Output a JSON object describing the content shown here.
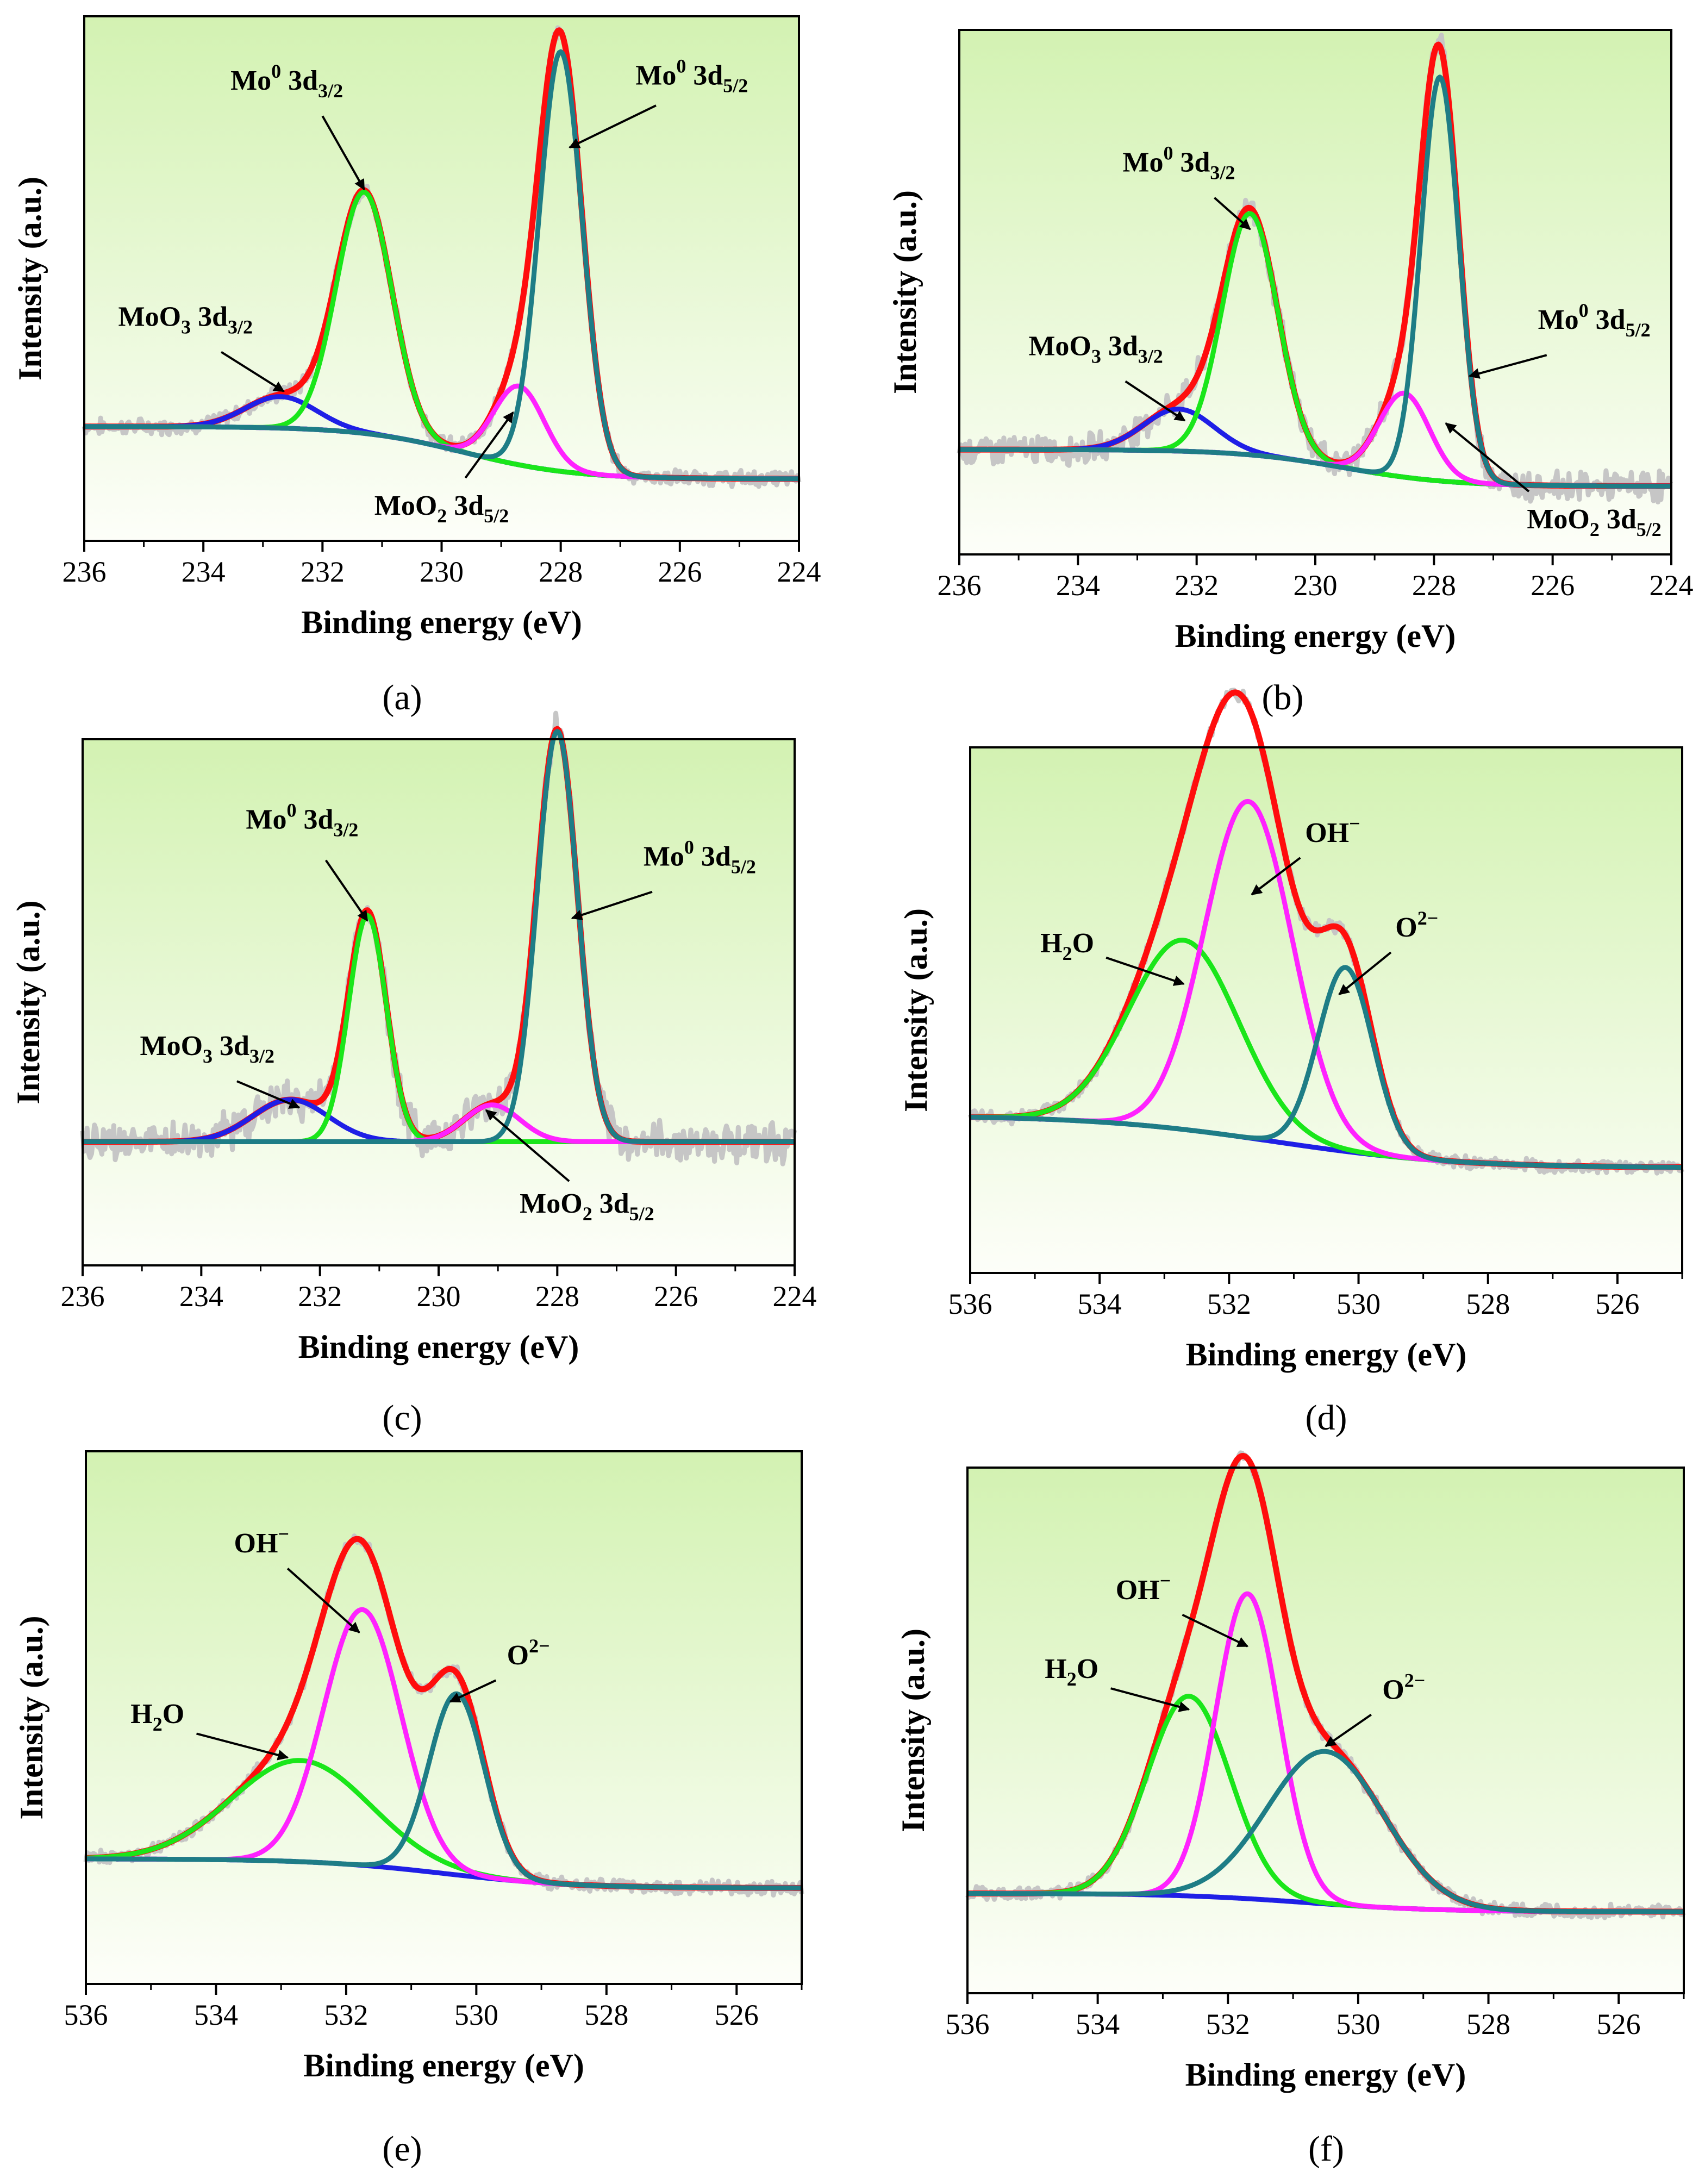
{
  "colors": {
    "background_top": "#d3f2b2",
    "background_bottom": "#fdfef9",
    "raw": "#c6c6c6",
    "envelope": "#ff0d0d",
    "background_line": "#1f1fe6",
    "green": "#1ae61a",
    "magenta": "#ff22ff",
    "teal": "#1e7d86",
    "arrow": "#000000"
  },
  "chart_data": [
    {
      "type": "line",
      "panel": "(a)",
      "xlabel": "Binding energy (eV)",
      "ylabel": "Intensity (a.u.)",
      "xlim": [
        236,
        224
      ],
      "ylim": [
        0,
        1
      ],
      "xticks": [
        236,
        234,
        232,
        230,
        228,
        226,
        224
      ],
      "xtick_labels": [
        "236",
        "234",
        "232",
        "230",
        "228",
        "226",
        "224"
      ],
      "background": {
        "high": 0.218,
        "low": 0.118,
        "center": 229.6,
        "width": 0.9
      },
      "series": [
        {
          "name": "MoO3 3d3/2",
          "color_key": "background_line",
          "center": 232.7,
          "height": 0.06,
          "fwhm": 1.4
        },
        {
          "name": "Mo0 3d3/2",
          "color_key": "green",
          "center": 231.3,
          "height": 0.46,
          "fwhm": 1.1
        },
        {
          "name": "MoO2 3d5/2",
          "color_key": "magenta",
          "center": 228.7,
          "height": 0.15,
          "fwhm": 1.0
        },
        {
          "name": "Mo0 3d5/2",
          "color_key": "teal",
          "center": 228.0,
          "height": 0.8,
          "fwhm": 0.85
        }
      ],
      "noise": 0.012,
      "annotations": [
        {
          "base": "Mo",
          "sup": "0",
          "rest": " 3d",
          "sub": "3/2",
          "x": 232.6,
          "y": 0.86,
          "anchor": "middle",
          "arrow_from": [
            232.0,
            0.81
          ],
          "arrow_to": [
            231.3,
            0.67
          ]
        },
        {
          "base": "Mo",
          "sup": "0",
          "rest": " 3d",
          "sub": "5/2",
          "x": 225.8,
          "y": 0.87,
          "anchor": "middle",
          "arrow_from": [
            226.4,
            0.83
          ],
          "arrow_to": [
            227.85,
            0.75
          ]
        },
        {
          "base": "MoO",
          "sub1": "3",
          "rest": " 3d",
          "sub": "3/2",
          "x": 234.3,
          "y": 0.41,
          "anchor": "middle",
          "arrow_from": [
            233.7,
            0.36
          ],
          "arrow_to": [
            232.65,
            0.285
          ]
        },
        {
          "base": "MoO",
          "sub1": "2",
          "rest": " 3d",
          "sub": "5/2",
          "x": 230.0,
          "y": 0.05,
          "anchor": "middle",
          "arrow_from": [
            229.6,
            0.12
          ],
          "arrow_to": [
            228.8,
            0.245
          ]
        }
      ]
    },
    {
      "type": "line",
      "panel": "(b)",
      "xlabel": "Binding energy (eV)",
      "ylabel": "Intensity (a.u.)",
      "xlim": [
        236,
        224
      ],
      "ylim": [
        0,
        1
      ],
      "xticks": [
        236,
        234,
        232,
        230,
        228,
        226,
        224
      ],
      "xtick_labels": [
        "236",
        "234",
        "232",
        "230",
        "228",
        "226",
        "224"
      ],
      "background": {
        "high": 0.2,
        "low": 0.13,
        "center": 229.5,
        "width": 0.9
      },
      "series": [
        {
          "name": "MoO3 3d3/2",
          "color_key": "background_line",
          "center": 232.3,
          "height": 0.08,
          "fwhm": 1.4
        },
        {
          "name": "Mo0 3d3/2",
          "color_key": "green",
          "center": 231.1,
          "height": 0.46,
          "fwhm": 1.1
        },
        {
          "name": "MoO2 3d5/2",
          "color_key": "magenta",
          "center": 228.5,
          "height": 0.16,
          "fwhm": 1.0
        },
        {
          "name": "Mo0 3d5/2",
          "color_key": "teal",
          "center": 227.9,
          "height": 0.77,
          "fwhm": 0.75
        }
      ],
      "noise": 0.022,
      "annotations": [
        {
          "base": "Mo",
          "sup": "0",
          "rest": " 3d",
          "sub": "3/2",
          "x": 232.3,
          "y": 0.73,
          "anchor": "middle",
          "arrow_from": [
            231.7,
            0.68
          ],
          "arrow_to": [
            231.1,
            0.62
          ]
        },
        {
          "base": "Mo",
          "sup": "0",
          "rest": " 3d",
          "sub": "5/2",
          "x": 225.3,
          "y": 0.43,
          "anchor": "middle",
          "arrow_from": [
            226.1,
            0.38
          ],
          "arrow_to": [
            227.4,
            0.34
          ]
        },
        {
          "base": "MoO",
          "sub1": "3",
          "rest": " 3d",
          "sub": "3/2",
          "x": 233.7,
          "y": 0.38,
          "anchor": "middle",
          "arrow_from": [
            233.2,
            0.33
          ],
          "arrow_to": [
            232.2,
            0.255
          ]
        },
        {
          "base": "MoO",
          "sub1": "2",
          "rest": " 3d",
          "sub": "5/2",
          "x": 225.3,
          "y": 0.05,
          "anchor": "middle",
          "arrow_from": [
            226.4,
            0.12
          ],
          "arrow_to": [
            227.8,
            0.25
          ]
        }
      ]
    },
    {
      "type": "line",
      "panel": "(c)",
      "xlabel": "Binding energy (eV)",
      "ylabel": "Intensity (a.u.)",
      "xlim": [
        236,
        224
      ],
      "ylim": [
        0,
        1
      ],
      "xticks": [
        236,
        234,
        232,
        230,
        228,
        226,
        224
      ],
      "xtick_labels": [
        "236",
        "234",
        "232",
        "230",
        "228",
        "226",
        "224"
      ],
      "background": {
        "high": 0.235,
        "low": 0.235,
        "center": 230.0,
        "width": 1.0
      },
      "series": [
        {
          "name": "MoO3 3d3/2",
          "color_key": "background_line",
          "center": 232.5,
          "height": 0.08,
          "fwhm": 1.5
        },
        {
          "name": "Mo0 3d3/2",
          "color_key": "green",
          "center": 231.2,
          "height": 0.43,
          "fwhm": 0.75
        },
        {
          "name": "MoO2 3d5/2",
          "color_key": "magenta",
          "center": 229.1,
          "height": 0.07,
          "fwhm": 1.1
        },
        {
          "name": "Mo0 3d5/2",
          "color_key": "teal",
          "center": 228.0,
          "height": 0.78,
          "fwhm": 0.8
        }
      ],
      "noise": 0.03,
      "annotations": [
        {
          "base": "Mo",
          "sup": "0",
          "rest": " 3d",
          "sub": "3/2",
          "x": 232.3,
          "y": 0.83,
          "anchor": "middle",
          "arrow_from": [
            231.9,
            0.77
          ],
          "arrow_to": [
            231.2,
            0.655
          ]
        },
        {
          "base": "Mo",
          "sup": "0",
          "rest": " 3d",
          "sub": "5/2",
          "x": 225.6,
          "y": 0.76,
          "anchor": "middle",
          "arrow_from": [
            226.4,
            0.71
          ],
          "arrow_to": [
            227.75,
            0.66
          ]
        },
        {
          "base": "MoO",
          "sub1": "3",
          "rest": " 3d",
          "sub": "3/2",
          "x": 233.9,
          "y": 0.4,
          "anchor": "middle",
          "arrow_from": [
            233.4,
            0.35
          ],
          "arrow_to": [
            232.35,
            0.3
          ]
        },
        {
          "base": "MoO",
          "sub1": "2",
          "rest": " 3d",
          "sub": "5/2",
          "x": 227.5,
          "y": 0.1,
          "anchor": "middle",
          "arrow_from": [
            227.8,
            0.16
          ],
          "arrow_to": [
            229.2,
            0.295
          ]
        }
      ]
    },
    {
      "type": "line",
      "panel": "(d)",
      "xlabel": "Binding energy (eV)",
      "ylabel": "Intensity (a.u.)",
      "xlim": [
        536,
        525
      ],
      "ylim": [
        0,
        1
      ],
      "xticks": [
        536,
        534,
        532,
        530,
        528,
        526
      ],
      "xtick_labels": [
        "536",
        "534",
        "532",
        "530",
        "528",
        "526"
      ],
      "background": {
        "high": 0.3,
        "low": 0.2,
        "center": 531.3,
        "width": 1.4
      },
      "series": [
        {
          "name": "H2O",
          "color_key": "green",
          "center": 532.7,
          "height": 0.36,
          "fwhm": 2.0
        },
        {
          "name": "OH-",
          "color_key": "magenta",
          "center": 531.7,
          "height": 0.64,
          "fwhm": 1.6
        },
        {
          "name": "O2-",
          "color_key": "teal",
          "center": 530.2,
          "height": 0.35,
          "fwhm": 1.0
        }
      ],
      "noise": 0.01,
      "annotations": [
        {
          "base": "OH",
          "sup": "−",
          "x": 530.4,
          "y": 0.82,
          "anchor": "middle",
          "arrow_from": [
            530.9,
            0.79
          ],
          "arrow_to": [
            531.65,
            0.72
          ]
        },
        {
          "base": "H",
          "sub1": "2",
          "rest": "O",
          "x": 534.5,
          "y": 0.61,
          "anchor": "middle",
          "arrow_from": [
            533.9,
            0.6
          ],
          "arrow_to": [
            532.7,
            0.55
          ]
        },
        {
          "base": "O",
          "sup": "2−",
          "x": 529.1,
          "y": 0.64,
          "anchor": "middle",
          "arrow_from": [
            529.5,
            0.61
          ],
          "arrow_to": [
            530.3,
            0.53
          ]
        }
      ]
    },
    {
      "type": "line",
      "panel": "(e)",
      "xlabel": "Binding energy (eV)",
      "ylabel": "Intensity (a.u.)",
      "xlim": [
        536,
        525
      ],
      "ylim": [
        0,
        1
      ],
      "xticks": [
        536,
        534,
        532,
        530,
        528,
        526
      ],
      "xtick_labels": [
        "536",
        "534",
        "532",
        "530",
        "528",
        "526"
      ],
      "background": {
        "high": 0.235,
        "low": 0.18,
        "center": 530.5,
        "width": 1.0
      },
      "series": [
        {
          "name": "H2O",
          "color_key": "green",
          "center": 532.7,
          "height": 0.19,
          "fwhm": 2.5
        },
        {
          "name": "OH-",
          "color_key": "magenta",
          "center": 531.75,
          "height": 0.48,
          "fwhm": 1.4
        },
        {
          "name": "O2-",
          "color_key": "teal",
          "center": 530.3,
          "height": 0.34,
          "fwhm": 1.0
        }
      ],
      "noise": 0.01,
      "annotations": [
        {
          "base": "OH",
          "sup": "−",
          "x": 533.3,
          "y": 0.81,
          "anchor": "middle",
          "arrow_from": [
            532.9,
            0.78
          ],
          "arrow_to": [
            531.8,
            0.66
          ]
        },
        {
          "base": "H",
          "sub1": "2",
          "rest": "O",
          "x": 534.9,
          "y": 0.49,
          "anchor": "middle",
          "arrow_from": [
            534.3,
            0.47
          ],
          "arrow_to": [
            532.9,
            0.425
          ]
        },
        {
          "base": "O",
          "sup": "2−",
          "x": 529.2,
          "y": 0.6,
          "anchor": "middle",
          "arrow_from": [
            529.7,
            0.57
          ],
          "arrow_to": [
            530.4,
            0.53
          ]
        }
      ]
    },
    {
      "type": "line",
      "panel": "(f)",
      "xlabel": "Binding energy (eV)",
      "ylabel": "Intensity (a.u.)",
      "xlim": [
        536,
        525
      ],
      "ylim": [
        0,
        1
      ],
      "xticks": [
        536,
        534,
        532,
        530,
        528,
        526
      ],
      "xtick_labels": [
        "536",
        "534",
        "532",
        "530",
        "528",
        "526"
      ],
      "background": {
        "high": 0.19,
        "low": 0.155,
        "center": 530.8,
        "width": 1.0
      },
      "series": [
        {
          "name": "H2O",
          "color_key": "green",
          "center": 532.6,
          "height": 0.38,
          "fwhm": 1.5
        },
        {
          "name": "OH-",
          "color_key": "magenta",
          "center": 531.7,
          "height": 0.58,
          "fwhm": 1.15
        },
        {
          "name": "O2-",
          "color_key": "teal",
          "center": 530.5,
          "height": 0.29,
          "fwhm": 2.1
        }
      ],
      "noise": 0.01,
      "annotations": [
        {
          "base": "OH",
          "sup": "−",
          "x": 533.3,
          "y": 0.75,
          "anchor": "middle",
          "arrow_from": [
            532.7,
            0.72
          ],
          "arrow_to": [
            531.7,
            0.66
          ]
        },
        {
          "base": "H",
          "sub1": "2",
          "rest": "O",
          "x": 534.4,
          "y": 0.6,
          "anchor": "middle",
          "arrow_from": [
            533.8,
            0.58
          ],
          "arrow_to": [
            532.6,
            0.54
          ]
        },
        {
          "base": "O",
          "sup": "2−",
          "x": 529.3,
          "y": 0.56,
          "anchor": "middle",
          "arrow_from": [
            529.8,
            0.53
          ],
          "arrow_to": [
            530.5,
            0.47
          ]
        }
      ]
    }
  ]
}
